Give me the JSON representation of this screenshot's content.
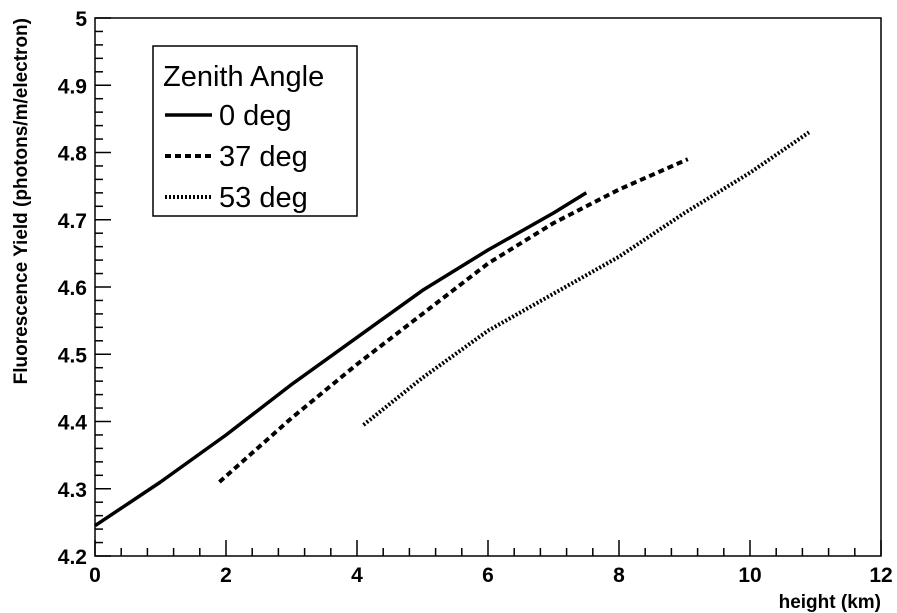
{
  "chart_data": {
    "type": "line",
    "title": "",
    "xlabel": "height (km)",
    "ylabel": "Fluorescence Yield (photons/m/electron)",
    "xlim": [
      0,
      12
    ],
    "ylim": [
      4.2,
      5.0
    ],
    "x_ticks": [
      "0",
      "2",
      "4",
      "6",
      "8",
      "10",
      "12"
    ],
    "y_ticks": [
      "4.2",
      "4.3",
      "4.4",
      "4.5",
      "4.6",
      "4.7",
      "4.8",
      "4.9",
      "5"
    ],
    "grid": false,
    "legend": {
      "title": "Zenith Angle",
      "position": "top-left"
    },
    "series": [
      {
        "name": "0 deg",
        "style": "solid",
        "x": [
          0,
          1,
          2,
          3,
          4,
          5,
          6,
          7,
          7.5
        ],
        "y": [
          4.245,
          4.31,
          4.38,
          4.455,
          4.525,
          4.595,
          4.655,
          4.71,
          4.74
        ]
      },
      {
        "name": "37 deg",
        "style": "dashed",
        "x": [
          1.9,
          3,
          4,
          5,
          6,
          7,
          8,
          9.05
        ],
        "y": [
          4.31,
          4.405,
          4.485,
          4.56,
          4.635,
          4.695,
          4.745,
          4.79
        ]
      },
      {
        "name": "53 deg",
        "style": "dotted",
        "x": [
          4.1,
          5,
          6,
          7,
          8,
          9,
          10,
          10.9
        ],
        "y": [
          4.395,
          4.465,
          4.535,
          4.59,
          4.645,
          4.71,
          4.77,
          4.83
        ]
      }
    ]
  }
}
